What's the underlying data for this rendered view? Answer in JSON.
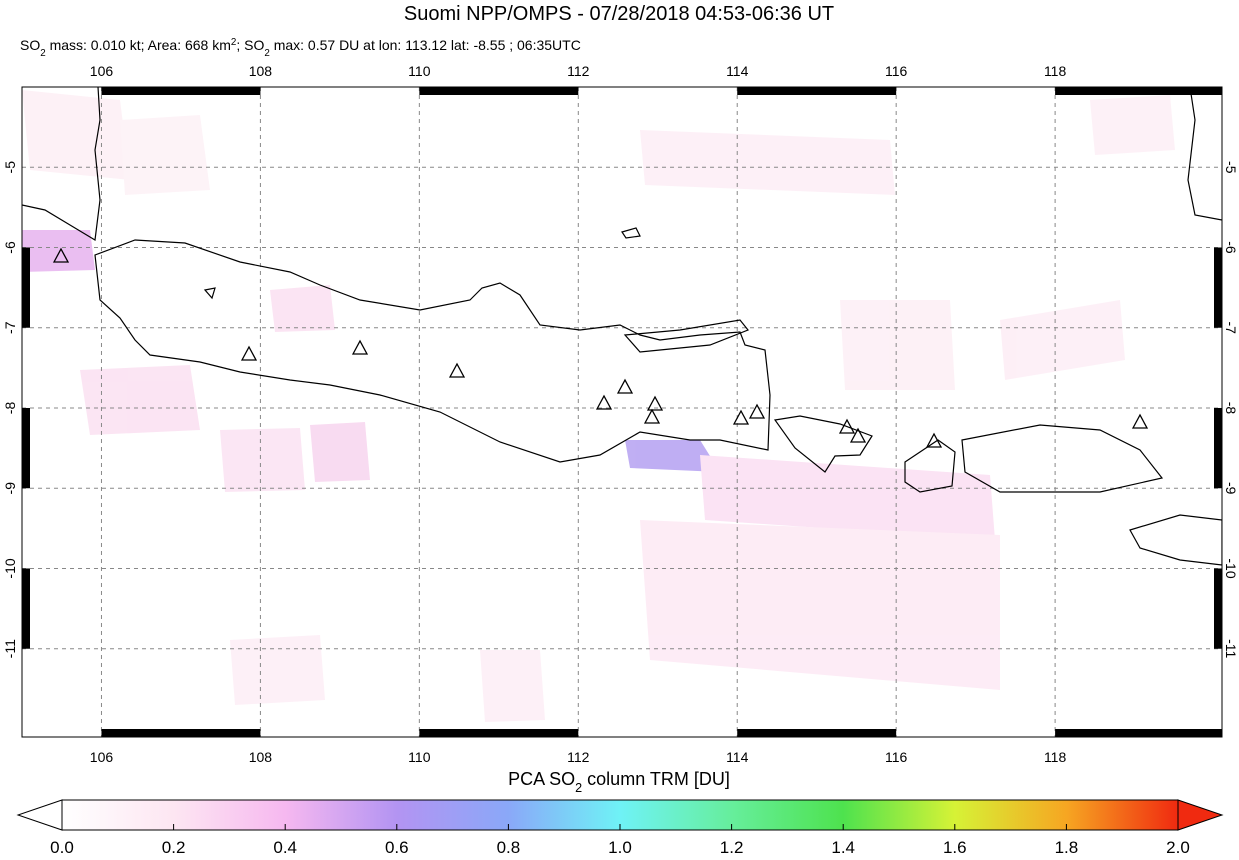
{
  "chart_data": {
    "type": "map",
    "title": "Suomi NPP/OMPS - 07/28/2018 04:53-06:36 UT",
    "subtitle": [
      "SO",
      "2",
      " mass: 0.010 kt; Area: 668 km",
      "2",
      "; SO",
      "2",
      " max: 0.57 DU at lon: 113.12 lat: -8.55 ; 06:35UTC"
    ],
    "xlim": [
      105,
      120.1
    ],
    "ylim": [
      -12.1,
      -4
    ],
    "xticks": [
      106,
      108,
      110,
      112,
      114,
      116,
      118
    ],
    "yticks": [
      -5,
      -6,
      -7,
      -8,
      -9,
      -10,
      -11
    ],
    "grid": true,
    "colorbar": {
      "label": [
        "PCA SO",
        "2",
        " column TRM [DU]"
      ],
      "lim": [
        0,
        2
      ],
      "ticks": [
        {
          "value": 0,
          "label": "0.0"
        },
        {
          "value": 0.2,
          "label": "0.2"
        },
        {
          "value": 0.4,
          "label": "0.4"
        },
        {
          "value": 0.6,
          "label": "0.6"
        },
        {
          "value": 0.8,
          "label": "0.8"
        },
        {
          "value": 1,
          "label": "1.0"
        },
        {
          "value": 1.2,
          "label": "1.2"
        },
        {
          "value": 1.4,
          "label": "1.4"
        },
        {
          "value": 1.6,
          "label": "1.6"
        },
        {
          "value": 1.8,
          "label": "1.8"
        },
        {
          "value": 2,
          "label": "2.0"
        }
      ]
    }
  }
}
